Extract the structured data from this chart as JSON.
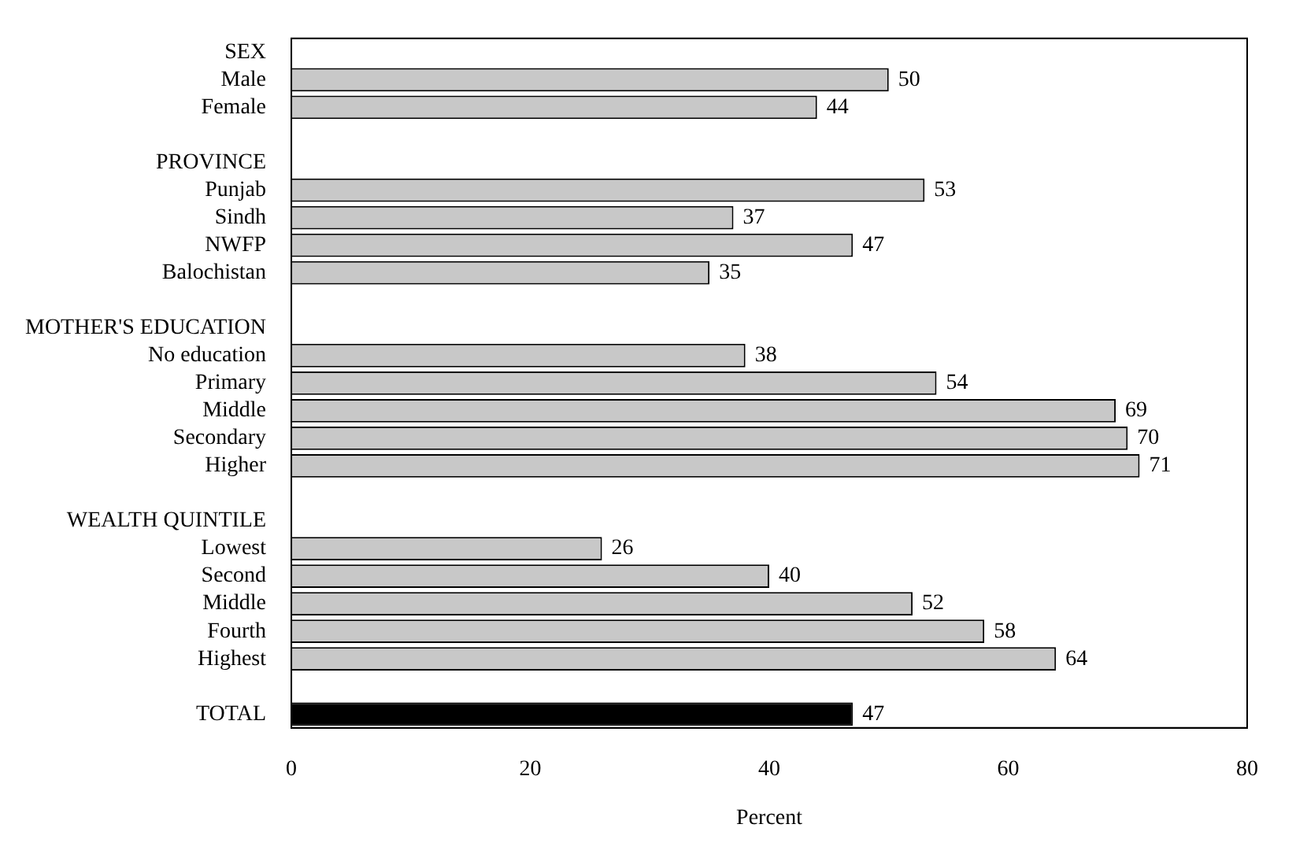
{
  "chart_data": {
    "type": "bar",
    "orientation": "horizontal",
    "xlabel": "Percent",
    "categories": [
      "SEX",
      "Male",
      "Female",
      null,
      "PROVINCE",
      "Punjab",
      "Sindh",
      "NWFP",
      "Balochistan",
      null,
      "MOTHER'S EDUCATION",
      "No education",
      "Primary",
      "Middle",
      "Secondary",
      "Higher",
      null,
      "WEALTH QUINTILE",
      "Lowest",
      "Second",
      "Middle",
      "Fourth",
      "Highest",
      null,
      "TOTAL"
    ],
    "values": [
      null,
      50,
      44,
      null,
      null,
      53,
      37,
      47,
      35,
      null,
      null,
      38,
      54,
      69,
      70,
      71,
      null,
      null,
      26,
      40,
      52,
      58,
      64,
      null,
      47
    ],
    "colors": [
      null,
      "#c8c8c8",
      "#c8c8c8",
      null,
      null,
      "#c8c8c8",
      "#c8c8c8",
      "#c8c8c8",
      "#c8c8c8",
      null,
      null,
      "#c8c8c8",
      "#c8c8c8",
      "#c8c8c8",
      "#c8c8c8",
      "#c8c8c8",
      null,
      null,
      "#c8c8c8",
      "#c8c8c8",
      "#c8c8c8",
      "#c8c8c8",
      "#c8c8c8",
      null,
      "#000000"
    ],
    "xlim": [
      0,
      80
    ],
    "xticks": [
      0,
      20,
      40,
      60,
      80
    ],
    "grid": false,
    "legend": false,
    "data_labels": true
  }
}
